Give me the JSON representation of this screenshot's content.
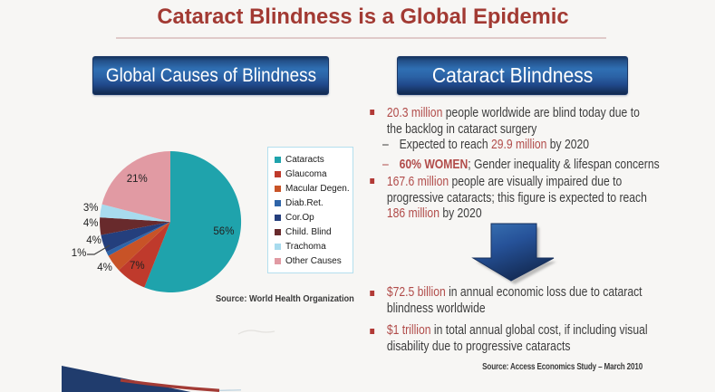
{
  "slide": {
    "title": "Cataract Blindness is a Global Epidemic",
    "left_panel": {
      "header": "Global Causes of Blindness",
      "source": "Source: World Health Organization"
    },
    "right_panel": {
      "header": "Cataract Blindness",
      "bullets": {
        "b1": {
          "em": "20.3 million",
          "text1": " people worldwide are blind today due to",
          "text2": "the backlog in cataract surgery"
        },
        "d1": {
          "dash": "–",
          "pre": "Expected to reach ",
          "em": "29.9 million",
          "post": " by 2020"
        },
        "d2": {
          "dash": "–",
          "em": "60% WOMEN",
          "post": "; Gender inequality & lifespan concerns"
        },
        "b2": {
          "em": "167.6 million",
          "text1": " people are visually impaired due to",
          "text2": "progressive cataracts; this figure is expected to reach",
          "em2": "186 million",
          "post": " by 2020"
        },
        "b3": {
          "em": "$72.5 billion",
          "text1": " in annual economic loss due to cataract",
          "text2": "blindness worldwide"
        },
        "b4": {
          "em": "$1 trillion",
          "text1": " in total annual global cost, if including visual",
          "text2": "disability due to progressive cataracts"
        }
      },
      "source": "Source: Access Economics Study – March 2010"
    }
  },
  "chart_data": {
    "type": "pie",
    "title": "Global Causes of Blindness",
    "categories": [
      "Cataracts",
      "Glaucoma",
      "Macular Degen.",
      "Diab.Ret.",
      "Cor.Op",
      "Child. Blind",
      "Trachoma",
      "Other Causes"
    ],
    "values": [
      56,
      7,
      4,
      1,
      4,
      4,
      3,
      21
    ],
    "labels": [
      "56%",
      "7%",
      "4%",
      "1%",
      "4%",
      "4%",
      "3%",
      "21%"
    ],
    "colors": [
      "#1fa3ac",
      "#bf3a2c",
      "#c85327",
      "#2e64a8",
      "#243f7d",
      "#682a2c",
      "#a8dbee",
      "#e19aa3"
    ],
    "legend_position": "right",
    "source": "Source: World Health Organization"
  },
  "colors": {
    "title_red": "#a23a33",
    "bullet_red": "#b14c4a",
    "header_bar_blue_top": "#16355f",
    "header_bar_blue_mid": "#2f6fb3",
    "arrow_blue": "#2d5fa5",
    "banner_navy": "#203c6d",
    "banner_red": "#a33b35",
    "legend_border": "#b4dfee"
  }
}
